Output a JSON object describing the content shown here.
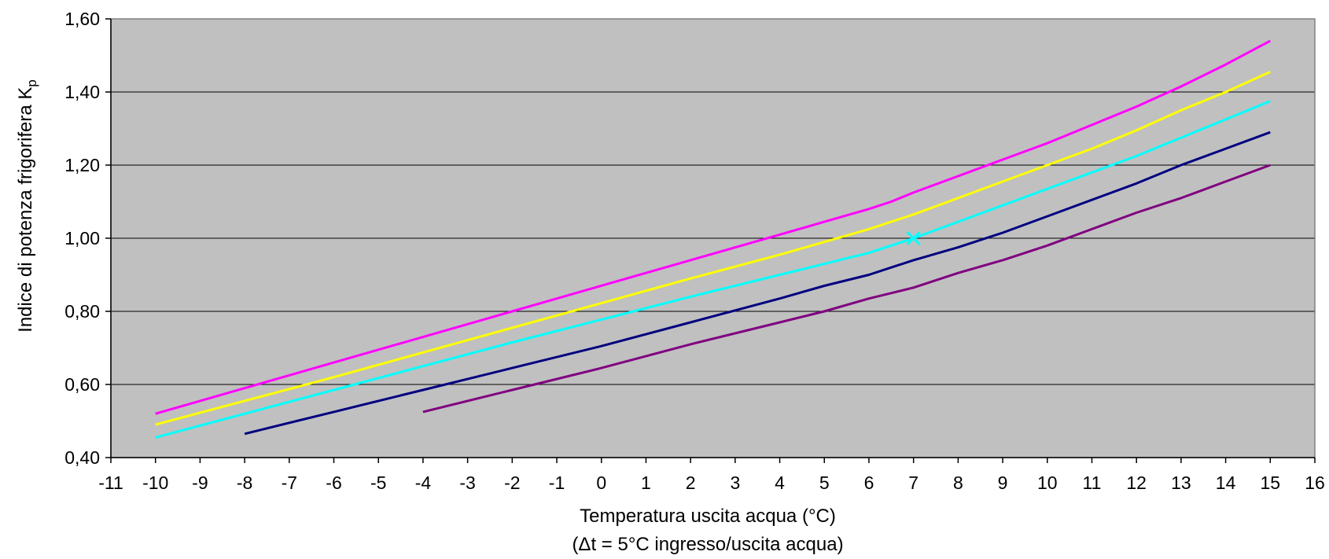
{
  "chart_data": {
    "type": "line",
    "title": "",
    "xlabel": "Temperatura uscita acqua (°C)",
    "xlabel_note": "(Δt = 5°C ingresso/uscita acqua)",
    "ylabel_main": "Indice di potenza frigorifera K",
    "ylabel_sub": "p",
    "xlim": [
      -11,
      16
    ],
    "ylim": [
      0.4,
      1.6
    ],
    "x_ticks": [
      -11,
      -10,
      -9,
      -8,
      -7,
      -6,
      -5,
      -4,
      -3,
      -2,
      -1,
      0,
      1,
      2,
      3,
      4,
      5,
      6,
      7,
      8,
      9,
      10,
      11,
      12,
      13,
      14,
      15,
      16
    ],
    "y_ticks": [
      0.4,
      0.6,
      0.8,
      1.0,
      1.2,
      1.4,
      1.6
    ],
    "y_tick_labels": [
      "0,40",
      "0,60",
      "0,80",
      "1,00",
      "1,20",
      "1,40",
      "1,60"
    ],
    "grid": "horizontal",
    "plot_background": "#c0c0c0",
    "legend": "none",
    "series": [
      {
        "color": "#ff00ff",
        "x": [
          -10,
          -6,
          -2,
          2,
          4,
          5,
          6,
          6.5,
          7,
          8,
          9,
          10,
          11,
          12,
          13,
          14,
          15
        ],
        "y": [
          0.52,
          0.66,
          0.8,
          0.94,
          1.01,
          1.045,
          1.08,
          1.1,
          1.125,
          1.17,
          1.215,
          1.26,
          1.31,
          1.36,
          1.415,
          1.475,
          1.54
        ]
      },
      {
        "color": "#ffff00",
        "x": [
          -10,
          -6,
          -2,
          2,
          4,
          5,
          6,
          6.5,
          7,
          8,
          9,
          10,
          11,
          12,
          13,
          14,
          15
        ],
        "y": [
          0.49,
          0.62,
          0.755,
          0.89,
          0.955,
          0.99,
          1.025,
          1.045,
          1.065,
          1.11,
          1.155,
          1.2,
          1.245,
          1.295,
          1.35,
          1.4,
          1.455
        ]
      },
      {
        "color": "#00ffff",
        "x": [
          -10,
          -6,
          -2,
          2,
          4,
          5,
          6,
          6.5,
          7,
          8,
          9,
          10,
          11,
          12,
          13,
          14,
          15
        ],
        "y": [
          0.455,
          0.585,
          0.715,
          0.84,
          0.9,
          0.93,
          0.96,
          0.98,
          1.0,
          1.045,
          1.09,
          1.135,
          1.18,
          1.225,
          1.275,
          1.325,
          1.375
        ]
      },
      {
        "color": "#000080",
        "x": [
          -8,
          -6,
          -4,
          -2,
          0,
          2,
          4,
          5,
          6,
          6.5,
          7,
          8,
          9,
          10,
          11,
          12,
          13,
          14,
          15
        ],
        "y": [
          0.465,
          0.525,
          0.585,
          0.645,
          0.705,
          0.77,
          0.835,
          0.87,
          0.9,
          0.92,
          0.94,
          0.975,
          1.015,
          1.06,
          1.105,
          1.15,
          1.2,
          1.245,
          1.29
        ]
      },
      {
        "color": "#800080",
        "x": [
          -4,
          -2,
          0,
          2,
          4,
          5,
          6,
          6.5,
          7,
          8,
          9,
          10,
          11,
          12,
          13,
          14,
          15
        ],
        "y": [
          0.525,
          0.585,
          0.645,
          0.71,
          0.77,
          0.8,
          0.835,
          0.85,
          0.865,
          0.905,
          0.94,
          0.98,
          1.025,
          1.07,
          1.11,
          1.155,
          1.2
        ]
      }
    ],
    "marker": {
      "shape": "x",
      "color": "#00ffff",
      "x": 7,
      "y": 1.0
    }
  }
}
